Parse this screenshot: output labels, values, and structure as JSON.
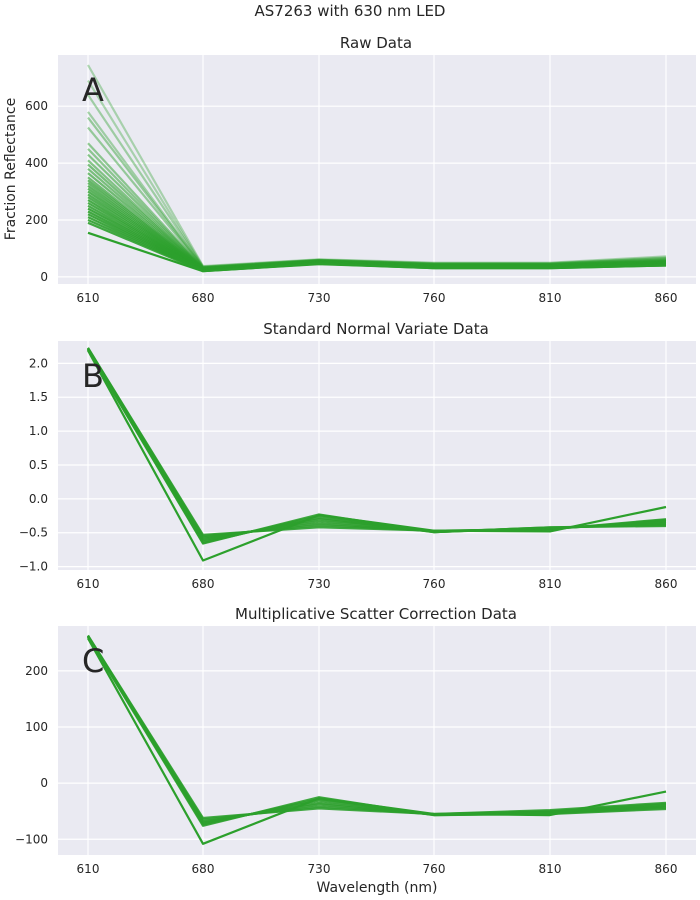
{
  "figure": {
    "suptitle": "AS7263 with 630 nm LED",
    "line_color": "#2ca02c",
    "background": "#eaeaf2"
  },
  "chart_data": [
    {
      "type": "line",
      "panel_letter": "A",
      "title": "Raw Data",
      "xlabel": "",
      "ylabel": "Fraction Reflectance",
      "x": [
        610,
        680,
        730,
        760,
        810,
        860
      ],
      "xticks": [
        "610",
        "680",
        "730",
        "760",
        "810",
        "860"
      ],
      "yticks": [
        0,
        200,
        400,
        600
      ],
      "ylim": [
        -25,
        780
      ],
      "series": [
        {
          "values": [
            745,
            38,
            62,
            50,
            50,
            72
          ],
          "opacity": 0.35
        },
        {
          "values": [
            690,
            36,
            60,
            48,
            48,
            68
          ],
          "opacity": 0.35
        },
        {
          "values": [
            640,
            35,
            60,
            47,
            47,
            66
          ],
          "opacity": 0.4
        },
        {
          "values": [
            580,
            34,
            59,
            46,
            46,
            64
          ],
          "opacity": 0.4
        },
        {
          "values": [
            560,
            33,
            58,
            45,
            45,
            62
          ],
          "opacity": 0.45
        },
        {
          "values": [
            525,
            33,
            58,
            45,
            45,
            60
          ],
          "opacity": 0.45
        },
        {
          "values": [
            470,
            32,
            57,
            44,
            44,
            58
          ],
          "opacity": 0.5
        },
        {
          "values": [
            450,
            31,
            57,
            43,
            43,
            57
          ],
          "opacity": 0.5
        },
        {
          "values": [
            430,
            31,
            56,
            42,
            42,
            56
          ],
          "opacity": 0.55
        },
        {
          "values": [
            410,
            30,
            56,
            42,
            42,
            55
          ],
          "opacity": 0.55
        },
        {
          "values": [
            395,
            30,
            55,
            41,
            41,
            54
          ],
          "opacity": 0.6
        },
        {
          "values": [
            380,
            29,
            55,
            40,
            40,
            53
          ],
          "opacity": 0.6
        },
        {
          "values": [
            365,
            29,
            54,
            40,
            40,
            52
          ],
          "opacity": 0.65
        },
        {
          "values": [
            350,
            28,
            54,
            39,
            39,
            51
          ],
          "opacity": 0.65
        },
        {
          "values": [
            340,
            28,
            53,
            39,
            39,
            50
          ],
          "opacity": 0.7
        },
        {
          "values": [
            330,
            27,
            53,
            38,
            38,
            50
          ],
          "opacity": 0.7
        },
        {
          "values": [
            320,
            27,
            52,
            38,
            38,
            49
          ],
          "opacity": 0.75
        },
        {
          "values": [
            310,
            26,
            52,
            37,
            37,
            48
          ],
          "opacity": 0.75
        },
        {
          "values": [
            300,
            26,
            51,
            37,
            37,
            48
          ],
          "opacity": 0.8
        },
        {
          "values": [
            290,
            25,
            51,
            36,
            36,
            47
          ],
          "opacity": 0.8
        },
        {
          "values": [
            280,
            25,
            50,
            36,
            36,
            46
          ],
          "opacity": 0.8
        },
        {
          "values": [
            270,
            24,
            50,
            35,
            35,
            46
          ],
          "opacity": 0.85
        },
        {
          "values": [
            260,
            24,
            49,
            35,
            35,
            45
          ],
          "opacity": 0.85
        },
        {
          "values": [
            250,
            23,
            49,
            34,
            34,
            44
          ],
          "opacity": 0.85
        },
        {
          "values": [
            240,
            23,
            48,
            34,
            34,
            44
          ],
          "opacity": 0.9
        },
        {
          "values": [
            230,
            22,
            48,
            33,
            33,
            43
          ],
          "opacity": 0.9
        },
        {
          "values": [
            220,
            22,
            47,
            33,
            33,
            42
          ],
          "opacity": 0.9
        },
        {
          "values": [
            210,
            21,
            47,
            32,
            32,
            42
          ],
          "opacity": 0.9
        },
        {
          "values": [
            200,
            21,
            46,
            32,
            32,
            41
          ],
          "opacity": 0.9
        },
        {
          "values": [
            190,
            20,
            46,
            31,
            31,
            40
          ],
          "opacity": 0.9
        },
        {
          "values": [
            155,
            20,
            45,
            31,
            31,
            40
          ],
          "opacity": 1.0
        }
      ]
    },
    {
      "type": "line",
      "panel_letter": "B",
      "title": "Standard Normal Variate Data",
      "xlabel": "",
      "ylabel": "",
      "x": [
        610,
        680,
        730,
        760,
        810,
        860
      ],
      "xticks": [
        "610",
        "680",
        "730",
        "760",
        "810",
        "860"
      ],
      "yticks": [
        2.0,
        1.5,
        1.0,
        0.5,
        0.0,
        -0.5,
        -1.0
      ],
      "ytick_labels": [
        "2.0",
        "1.5",
        "1.0",
        "0.5",
        "0.0",
        "−0.5",
        "−1.0"
      ],
      "ylim": [
        -1.05,
        2.33
      ],
      "series": [
        {
          "values": [
            2.23,
            -0.53,
            -0.42,
            -0.47,
            -0.45,
            -0.3
          ],
          "opacity": 0.9
        },
        {
          "values": [
            2.23,
            -0.55,
            -0.39,
            -0.47,
            -0.45,
            -0.31
          ],
          "opacity": 0.9
        },
        {
          "values": [
            2.22,
            -0.57,
            -0.36,
            -0.48,
            -0.44,
            -0.33
          ],
          "opacity": 0.9
        },
        {
          "values": [
            2.22,
            -0.59,
            -0.33,
            -0.48,
            -0.44,
            -0.34
          ],
          "opacity": 0.9
        },
        {
          "values": [
            2.21,
            -0.61,
            -0.3,
            -0.48,
            -0.43,
            -0.36
          ],
          "opacity": 0.9
        },
        {
          "values": [
            2.21,
            -0.63,
            -0.28,
            -0.49,
            -0.43,
            -0.37
          ],
          "opacity": 0.9
        },
        {
          "values": [
            2.2,
            -0.65,
            -0.25,
            -0.49,
            -0.42,
            -0.39
          ],
          "opacity": 0.9
        },
        {
          "values": [
            2.2,
            -0.66,
            -0.23,
            -0.49,
            -0.42,
            -0.4
          ],
          "opacity": 0.9
        },
        {
          "values": [
            2.19,
            -0.91,
            -0.24,
            -0.47,
            -0.48,
            -0.12
          ],
          "opacity": 1.0
        }
      ]
    },
    {
      "type": "line",
      "panel_letter": "C",
      "title": "Multiplicative Scatter Correction Data",
      "xlabel": "Wavelength (nm)",
      "ylabel": "",
      "x": [
        610,
        680,
        730,
        760,
        810,
        860
      ],
      "xticks": [
        "610",
        "680",
        "730",
        "760",
        "810",
        "860"
      ],
      "yticks": [
        200,
        100,
        0,
        -100
      ],
      "ytick_labels": [
        "200",
        "100",
        "0",
        "−100"
      ],
      "ylim": [
        -128,
        280
      ],
      "series": [
        {
          "values": [
            263,
            -62,
            -45,
            -55,
            -48,
            -35
          ],
          "opacity": 0.9
        },
        {
          "values": [
            263,
            -65,
            -42,
            -55,
            -50,
            -37
          ],
          "opacity": 0.9
        },
        {
          "values": [
            262,
            -68,
            -38,
            -56,
            -51,
            -39
          ],
          "opacity": 0.9
        },
        {
          "values": [
            262,
            -70,
            -35,
            -56,
            -52,
            -41
          ],
          "opacity": 0.9
        },
        {
          "values": [
            261,
            -72,
            -31,
            -56,
            -53,
            -42
          ],
          "opacity": 0.9
        },
        {
          "values": [
            261,
            -74,
            -28,
            -57,
            -54,
            -44
          ],
          "opacity": 0.9
        },
        {
          "values": [
            260,
            -76,
            -25,
            -57,
            -55,
            -46
          ],
          "opacity": 0.9
        },
        {
          "values": [
            258,
            -108,
            -27,
            -55,
            -57,
            -15
          ],
          "opacity": 1.0
        }
      ]
    }
  ]
}
